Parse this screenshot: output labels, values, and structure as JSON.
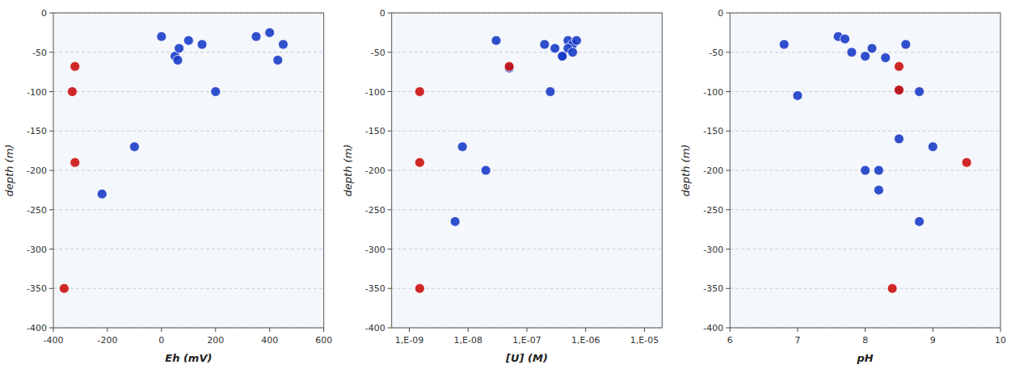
{
  "chart_data": [
    {
      "type": "scatter",
      "x_label": "Eh (mV)",
      "y_label": "depth (m)",
      "xlim": [
        -400,
        600
      ],
      "xticks": [
        -400,
        -200,
        0,
        200,
        400,
        600
      ],
      "ylim": [
        -400,
        0
      ],
      "yticks": [
        0,
        -50,
        -100,
        -150,
        -200,
        -250,
        -300,
        -350,
        -400
      ],
      "grid": true,
      "series": [
        {
          "color": "#1a3cc8",
          "x": [
            0,
            50,
            60,
            65,
            100,
            150,
            200,
            350,
            400,
            450,
            430,
            -100,
            -220
          ],
          "values": [
            -30,
            -55,
            -60,
            -45,
            -35,
            -40,
            -100,
            -30,
            -25,
            -40,
            -60,
            -170,
            -230
          ]
        },
        {
          "color": "#cc1111",
          "x": [
            -320,
            -330,
            -320,
            -360
          ],
          "values": [
            -68,
            -100,
            -190,
            -350
          ]
        }
      ]
    },
    {
      "type": "scatter",
      "x_label": "[U] (M)",
      "y_label": "depth (m)",
      "log": "x",
      "xlim": [
        5e-10,
        2e-05
      ],
      "xticks": [
        {
          "value": 1e-09,
          "label": "1,E-09"
        },
        {
          "value": 1e-08,
          "label": "1,E-08"
        },
        {
          "value": 1e-07,
          "label": "1,E-07"
        },
        {
          "value": 1e-06,
          "label": "1,E-06"
        },
        {
          "value": 1e-05,
          "label": "1,E-05"
        }
      ],
      "ylim": [
        -400,
        0
      ],
      "yticks": [
        0,
        -50,
        -100,
        -150,
        -200,
        -250,
        -300,
        -350,
        -400
      ],
      "grid": true,
      "series": [
        {
          "color": "#1a3cc8",
          "x": [
            3e-08,
            2e-07,
            3e-07,
            5e-07,
            4e-07,
            6e-07,
            5e-07,
            4e-07,
            6e-07,
            7e-07,
            5e-08,
            8e-09,
            6e-09,
            2.5e-07,
            2e-08
          ],
          "values": [
            -35,
            -40,
            -45,
            -35,
            -55,
            -40,
            -45,
            -55,
            -50,
            -35,
            -70,
            -170,
            -265,
            -100,
            -200
          ]
        },
        {
          "color": "#cc1111",
          "x": [
            1.5e-09,
            5e-08,
            1.5e-09,
            1.5e-09
          ],
          "values": [
            -100,
            -68,
            -190,
            -350
          ]
        }
      ]
    },
    {
      "type": "scatter",
      "x_label": "pH",
      "y_label": "depth (m)",
      "xlim": [
        6,
        10
      ],
      "xticks": [
        6,
        7,
        8,
        9,
        10
      ],
      "ylim": [
        -400,
        0
      ],
      "yticks": [
        0,
        -50,
        -100,
        -150,
        -200,
        -250,
        -300,
        -350,
        -400
      ],
      "grid": true,
      "series": [
        {
          "color": "#1a3cc8",
          "x": [
            6.8,
            7.6,
            7.7,
            7.8,
            8.0,
            8.1,
            8.3,
            8.6,
            8.8,
            8.5,
            7.0,
            8.5,
            8.0,
            8.2,
            8.8,
            9.0,
            8.2
          ],
          "values": [
            -40,
            -30,
            -33,
            -50,
            -55,
            -45,
            -57,
            -40,
            -100,
            -98,
            -105,
            -160,
            -200,
            -225,
            -265,
            -170,
            -200
          ]
        },
        {
          "color": "#cc1111",
          "x": [
            8.5,
            8.5,
            9.5,
            8.4
          ],
          "values": [
            -68,
            -98,
            -190,
            -350
          ]
        }
      ]
    }
  ]
}
